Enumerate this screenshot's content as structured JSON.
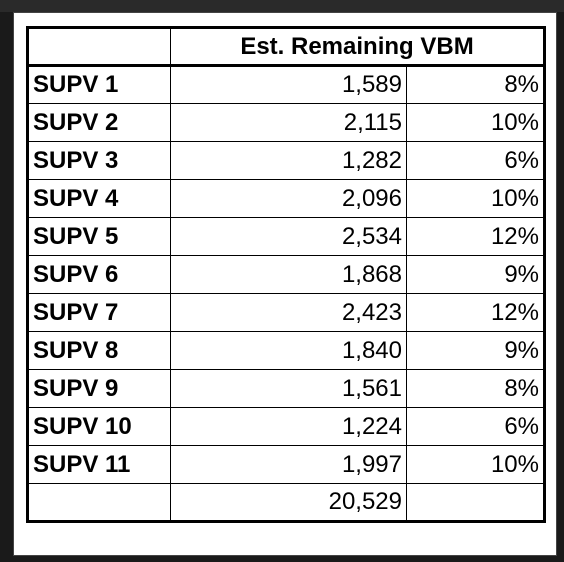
{
  "table": {
    "header": {
      "blank": "",
      "value_col": "Est. Remaining VBM"
    },
    "rows": [
      {
        "label": "SUPV 1",
        "value": "1,589",
        "pct": "8%"
      },
      {
        "label": "SUPV 2",
        "value": "2,115",
        "pct": "10%"
      },
      {
        "label": "SUPV 3",
        "value": "1,282",
        "pct": "6%"
      },
      {
        "label": "SUPV 4",
        "value": "2,096",
        "pct": "10%"
      },
      {
        "label": "SUPV 5",
        "value": "2,534",
        "pct": "12%"
      },
      {
        "label": "SUPV 6",
        "value": "1,868",
        "pct": "9%"
      },
      {
        "label": "SUPV 7",
        "value": "2,423",
        "pct": "12%"
      },
      {
        "label": "SUPV 8",
        "value": "1,840",
        "pct": "9%"
      },
      {
        "label": "SUPV 9",
        "value": "1,561",
        "pct": "8%"
      },
      {
        "label": "SUPV 10",
        "value": "1,224",
        "pct": "6%"
      },
      {
        "label": "SUPV 11",
        "value": "1,997",
        "pct": "10%"
      }
    ],
    "total": {
      "label": "",
      "value": "20,529",
      "pct": ""
    }
  },
  "colors": {
    "background": "#1a1a1a",
    "table_bg": "#ffffff",
    "border": "#000000"
  }
}
